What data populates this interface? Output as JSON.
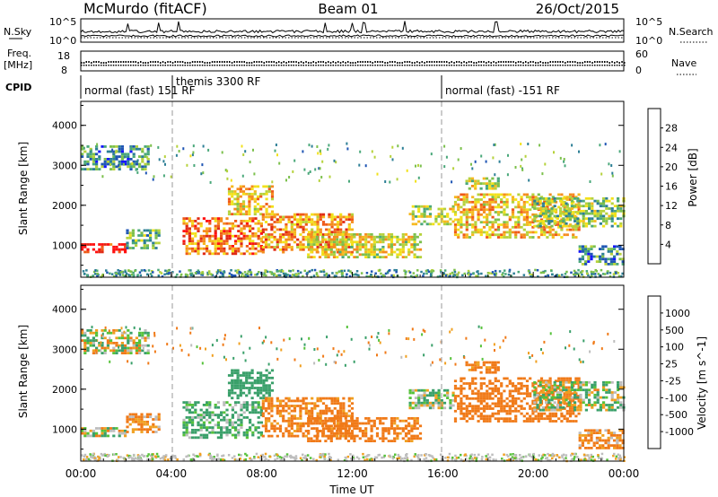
{
  "header": {
    "station": "McMurdo (fitACF)",
    "beam": "Beam 01",
    "date": "26/Oct/2015"
  },
  "status_panels": {
    "noise": {
      "left_label": "N.Sky",
      "right_label": "N.Search",
      "left_ticks": [
        "10^5",
        "10^0"
      ],
      "right_ticks": [
        "10^5",
        "10^0"
      ]
    },
    "freq": {
      "left_label_line1": "Freq.",
      "left_label_line2": "[MHz]",
      "right_label": "Nave",
      "left_ticks": [
        "18",
        "8"
      ],
      "right_ticks": [
        "60",
        "0"
      ]
    },
    "cpid": {
      "label": "CPID",
      "segments": [
        {
          "start_hour": 0,
          "text": "normal (fast) 151 RF"
        },
        {
          "start_hour": 4,
          "text": "themis 3300 RF"
        },
        {
          "start_hour": 16,
          "text": "normal (fast) -151 RF"
        }
      ]
    }
  },
  "chart_data": [
    {
      "type": "heatmap",
      "name": "power",
      "ylabel": "Slant Range [km]",
      "xlabel": "",
      "ylim": [
        200,
        4600
      ],
      "xlim": [
        0,
        24
      ],
      "yticks": [
        "1000",
        "2000",
        "3000",
        "4000"
      ],
      "colorbar": {
        "label": "Power [dB]",
        "ticks": [
          "28",
          "24",
          "20",
          "16",
          "12",
          "8",
          "4"
        ],
        "colors": [
          "#1414ff",
          "#1f55b4",
          "#2d7f96",
          "#4aa87a",
          "#7cc04c",
          "#b6d23c",
          "#f2e11a",
          "#f6b81e",
          "#f58c1e",
          "#ef5a18",
          "#e02a14",
          "#ff1010"
        ]
      },
      "echo_regions": [
        {
          "t0": 0.0,
          "t1": 2.0,
          "r0": 850,
          "r1": 1050,
          "intensity": 28
        },
        {
          "t0": 2.0,
          "t1": 3.5,
          "r0": 900,
          "r1": 1400,
          "intensity": 10
        },
        {
          "t0": 0.0,
          "t1": 3.0,
          "r0": 2900,
          "r1": 3500,
          "intensity": 8
        },
        {
          "t0": 4.5,
          "t1": 8.0,
          "r0": 800,
          "r1": 1700,
          "intensity": 22
        },
        {
          "t0": 6.5,
          "t1": 8.5,
          "r0": 1800,
          "r1": 2500,
          "intensity": 18
        },
        {
          "t0": 8.0,
          "t1": 12.0,
          "r0": 800,
          "r1": 1800,
          "intensity": 20
        },
        {
          "t0": 10.0,
          "t1": 15.0,
          "r0": 700,
          "r1": 1300,
          "intensity": 16
        },
        {
          "t0": 14.5,
          "t1": 16.5,
          "r0": 1500,
          "r1": 2000,
          "intensity": 14
        },
        {
          "t0": 16.5,
          "t1": 22.0,
          "r0": 1200,
          "r1": 2300,
          "intensity": 18
        },
        {
          "t0": 20.0,
          "t1": 24.0,
          "r0": 1500,
          "r1": 2200,
          "intensity": 12
        },
        {
          "t0": 17.0,
          "t1": 18.5,
          "r0": 2400,
          "r1": 2700,
          "intensity": 14
        },
        {
          "t0": 22.0,
          "t1": 24.0,
          "r0": 500,
          "r1": 1000,
          "intensity": 8
        }
      ]
    },
    {
      "type": "heatmap",
      "name": "velocity",
      "ylabel": "Slant Range [km]",
      "xlabel": "Time UT",
      "ylim": [
        200,
        4600
      ],
      "xlim": [
        0,
        24
      ],
      "yticks": [
        "1000",
        "2000",
        "3000",
        "4000"
      ],
      "xticks": [
        "00:00",
        "04:00",
        "08:00",
        "12:00",
        "16:00",
        "20:00",
        "00:00"
      ],
      "colorbar": {
        "label": "Velocity [m s^-1]",
        "ticks": [
          "1000",
          "500",
          "100",
          "25",
          "-25",
          "-100",
          "-500",
          "-1000"
        ],
        "colors": [
          "#1a50c8",
          "#2e74b4",
          "#3aa06a",
          "#56c23a",
          "#bdbdbd",
          "#f0a020",
          "#f07a18",
          "#e84a10",
          "#ff1010"
        ]
      },
      "echo_regions": [
        {
          "t0": 0.0,
          "t1": 2.0,
          "r0": 850,
          "r1": 1050,
          "velocity": 0
        },
        {
          "t0": 2.0,
          "t1": 3.5,
          "r0": 900,
          "r1": 1400,
          "velocity": -150
        },
        {
          "t0": 0.0,
          "t1": 3.0,
          "r0": 2900,
          "r1": 3500,
          "velocity": 0
        },
        {
          "t0": 4.5,
          "t1": 8.0,
          "r0": 800,
          "r1": 1700,
          "velocity": 150
        },
        {
          "t0": 6.5,
          "t1": 8.5,
          "r0": 1800,
          "r1": 2500,
          "velocity": 300
        },
        {
          "t0": 8.0,
          "t1": 12.0,
          "r0": 800,
          "r1": 1800,
          "velocity": -200
        },
        {
          "t0": 10.0,
          "t1": 15.0,
          "r0": 700,
          "r1": 1300,
          "velocity": -250
        },
        {
          "t0": 14.5,
          "t1": 16.5,
          "r0": 1500,
          "r1": 2000,
          "velocity": 80
        },
        {
          "t0": 16.5,
          "t1": 22.0,
          "r0": 1200,
          "r1": 2300,
          "velocity": -300
        },
        {
          "t0": 20.0,
          "t1": 24.0,
          "r0": 1500,
          "r1": 2200,
          "velocity": 60
        },
        {
          "t0": 17.0,
          "t1": 18.5,
          "r0": 2400,
          "r1": 2700,
          "velocity": -200
        },
        {
          "t0": 22.0,
          "t1": 24.0,
          "r0": 500,
          "r1": 1000,
          "velocity": -150
        }
      ]
    }
  ]
}
